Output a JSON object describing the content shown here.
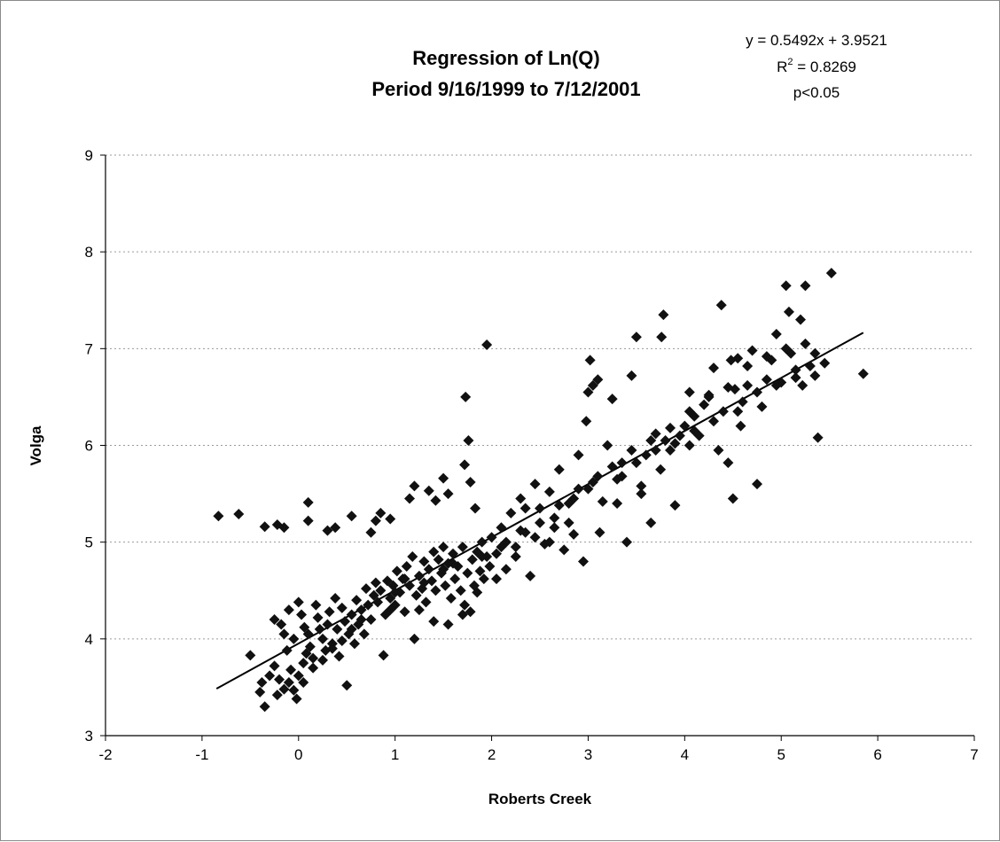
{
  "chart_data": {
    "type": "scatter",
    "title": [
      "Regression of Ln(Q)",
      "Period  9/16/1999 to 7/12/2001"
    ],
    "xlabel": "Roberts Creek",
    "ylabel": "Volga",
    "xlim": [
      -2,
      7
    ],
    "ylim": [
      3,
      9
    ],
    "xticks": [
      "-2",
      "-1",
      "0",
      "1",
      "2",
      "3",
      "4",
      "5",
      "6",
      "7"
    ],
    "yticks": [
      "3",
      "4",
      "5",
      "6",
      "7",
      "8",
      "9"
    ],
    "grid": "horizontal dashed",
    "legend": "none",
    "annotation": {
      "equation": "y = 0.5492x + 3.9521",
      "r2_prefix": "R",
      "r2_sup": "2",
      "r2_value": " = 0.8269",
      "p_value": "p<0.05"
    },
    "trendline": {
      "slope": 0.5492,
      "intercept": 3.9521,
      "x_range": [
        -0.85,
        5.85
      ]
    },
    "marker_color": "#111111",
    "series": [
      {
        "values": [
          [
            -0.83,
            5.27
          ],
          [
            -0.62,
            5.29
          ],
          [
            -0.35,
            5.16
          ],
          [
            -0.22,
            5.18
          ],
          [
            -0.15,
            5.15
          ],
          [
            0.1,
            5.41
          ],
          [
            0.1,
            5.22
          ],
          [
            0.3,
            5.12
          ],
          [
            0.38,
            5.15
          ],
          [
            0.55,
            5.27
          ],
          [
            0.75,
            5.1
          ],
          [
            0.8,
            5.22
          ],
          [
            0.85,
            5.3
          ],
          [
            0.95,
            5.24
          ],
          [
            1.15,
            5.45
          ],
          [
            1.2,
            5.58
          ],
          [
            1.35,
            5.53
          ],
          [
            1.42,
            5.43
          ],
          [
            1.5,
            5.66
          ],
          [
            1.55,
            5.5
          ],
          [
            1.73,
            6.5
          ],
          [
            1.76,
            6.05
          ],
          [
            1.72,
            5.8
          ],
          [
            1.78,
            5.62
          ],
          [
            1.95,
            7.04
          ],
          [
            1.83,
            5.35
          ],
          [
            -0.5,
            3.83
          ],
          [
            -0.4,
            3.45
          ],
          [
            -0.35,
            3.3
          ],
          [
            -0.38,
            3.55
          ],
          [
            -0.3,
            3.62
          ],
          [
            -0.25,
            3.72
          ],
          [
            -0.2,
            3.58
          ],
          [
            -0.22,
            3.42
          ],
          [
            -0.15,
            3.48
          ],
          [
            -0.1,
            3.55
          ],
          [
            -0.08,
            3.68
          ],
          [
            -0.05,
            3.47
          ],
          [
            -0.02,
            3.38
          ],
          [
            0.0,
            3.62
          ],
          [
            0.05,
            3.75
          ],
          [
            0.08,
            3.85
          ],
          [
            -0.25,
            4.2
          ],
          [
            -0.18,
            4.15
          ],
          [
            -0.15,
            4.05
          ],
          [
            -0.1,
            4.3
          ],
          [
            -0.05,
            4.0
          ],
          [
            0.0,
            4.38
          ],
          [
            0.03,
            4.25
          ],
          [
            0.06,
            4.12
          ],
          [
            0.1,
            4.05
          ],
          [
            0.12,
            3.92
          ],
          [
            0.15,
            3.8
          ],
          [
            0.18,
            4.35
          ],
          [
            0.2,
            4.22
          ],
          [
            0.22,
            4.1
          ],
          [
            0.25,
            4.0
          ],
          [
            0.28,
            3.88
          ],
          [
            0.3,
            4.15
          ],
          [
            0.32,
            4.28
          ],
          [
            0.35,
            3.95
          ],
          [
            0.38,
            4.42
          ],
          [
            0.4,
            4.1
          ],
          [
            0.42,
            3.82
          ],
          [
            0.45,
            4.32
          ],
          [
            0.48,
            4.18
          ],
          [
            0.5,
            3.52
          ],
          [
            0.52,
            4.05
          ],
          [
            0.55,
            4.25
          ],
          [
            0.58,
            3.95
          ],
          [
            0.6,
            4.4
          ],
          [
            0.62,
            4.15
          ],
          [
            0.65,
            4.3
          ],
          [
            0.68,
            4.05
          ],
          [
            0.7,
            4.52
          ],
          [
            0.72,
            4.35
          ],
          [
            0.75,
            4.2
          ],
          [
            0.78,
            4.45
          ],
          [
            0.8,
            4.58
          ],
          [
            0.82,
            4.38
          ],
          [
            0.85,
            4.5
          ],
          [
            0.88,
            3.83
          ],
          [
            0.9,
            4.25
          ],
          [
            0.92,
            4.6
          ],
          [
            0.95,
            4.42
          ],
          [
            0.98,
            4.55
          ],
          [
            1.0,
            4.35
          ],
          [
            1.02,
            4.7
          ],
          [
            1.05,
            4.48
          ],
          [
            1.08,
            4.62
          ],
          [
            1.1,
            4.28
          ],
          [
            1.12,
            4.75
          ],
          [
            1.15,
            4.55
          ],
          [
            1.18,
            4.85
          ],
          [
            1.2,
            4.0
          ],
          [
            1.22,
            4.45
          ],
          [
            1.25,
            4.65
          ],
          [
            1.28,
            4.52
          ],
          [
            1.3,
            4.8
          ],
          [
            1.32,
            4.38
          ],
          [
            1.35,
            4.72
          ],
          [
            1.38,
            4.6
          ],
          [
            1.4,
            4.9
          ],
          [
            1.42,
            4.5
          ],
          [
            1.45,
            4.82
          ],
          [
            1.48,
            4.68
          ],
          [
            1.5,
            4.95
          ],
          [
            1.52,
            4.55
          ],
          [
            1.55,
            4.78
          ],
          [
            1.58,
            4.42
          ],
          [
            1.6,
            4.88
          ],
          [
            1.62,
            4.62
          ],
          [
            1.65,
            4.75
          ],
          [
            1.68,
            4.5
          ],
          [
            1.7,
            4.95
          ],
          [
            1.72,
            4.35
          ],
          [
            1.75,
            4.68
          ],
          [
            1.78,
            4.28
          ],
          [
            1.8,
            4.82
          ],
          [
            1.82,
            4.55
          ],
          [
            1.85,
            4.9
          ],
          [
            1.88,
            4.7
          ],
          [
            1.9,
            5.0
          ],
          [
            1.92,
            4.62
          ],
          [
            1.95,
            4.85
          ],
          [
            1.98,
            4.75
          ],
          [
            2.0,
            5.05
          ],
          [
            2.05,
            4.88
          ],
          [
            2.1,
            5.15
          ],
          [
            2.15,
            4.72
          ],
          [
            2.2,
            5.3
          ],
          [
            2.25,
            4.95
          ],
          [
            2.3,
            5.45
          ],
          [
            2.35,
            5.1
          ],
          [
            2.4,
            4.65
          ],
          [
            2.45,
            5.6
          ],
          [
            2.5,
            5.35
          ],
          [
            2.55,
            4.98
          ],
          [
            2.6,
            5.52
          ],
          [
            2.65,
            5.15
          ],
          [
            2.7,
            5.75
          ],
          [
            2.75,
            4.92
          ],
          [
            2.8,
            5.4
          ],
          [
            2.85,
            5.08
          ],
          [
            2.9,
            5.9
          ],
          [
            2.95,
            4.8
          ],
          [
            2.98,
            6.25
          ],
          [
            3.0,
            6.55
          ],
          [
            3.02,
            6.88
          ],
          [
            3.05,
            6.62
          ],
          [
            3.1,
            6.68
          ],
          [
            3.12,
            5.1
          ],
          [
            3.15,
            5.42
          ],
          [
            3.2,
            6.0
          ],
          [
            3.25,
            6.48
          ],
          [
            3.3,
            5.65
          ],
          [
            3.35,
            5.82
          ],
          [
            3.4,
            5.0
          ],
          [
            3.45,
            6.72
          ],
          [
            3.5,
            7.12
          ],
          [
            3.55,
            5.58
          ],
          [
            3.6,
            5.9
          ],
          [
            3.65,
            5.2
          ],
          [
            3.7,
            6.12
          ],
          [
            3.75,
            5.75
          ],
          [
            3.78,
            7.35
          ],
          [
            3.76,
            7.12
          ],
          [
            3.8,
            6.05
          ],
          [
            3.85,
            5.95
          ],
          [
            3.9,
            5.38
          ],
          [
            3.95,
            6.1
          ],
          [
            4.0,
            6.2
          ],
          [
            4.05,
            6.55
          ],
          [
            4.1,
            6.3
          ],
          [
            4.15,
            6.1
          ],
          [
            4.2,
            6.42
          ],
          [
            4.25,
            6.5
          ],
          [
            4.3,
            6.8
          ],
          [
            4.35,
            5.95
          ],
          [
            4.38,
            7.45
          ],
          [
            4.4,
            6.35
          ],
          [
            4.45,
            5.82
          ],
          [
            4.48,
            6.88
          ],
          [
            4.5,
            5.45
          ],
          [
            4.52,
            6.58
          ],
          [
            4.55,
            6.9
          ],
          [
            4.58,
            6.2
          ],
          [
            4.6,
            6.45
          ],
          [
            4.65,
            6.62
          ],
          [
            4.7,
            6.98
          ],
          [
            4.75,
            5.6
          ],
          [
            4.8,
            6.4
          ],
          [
            4.85,
            6.68
          ],
          [
            4.9,
            6.88
          ],
          [
            4.95,
            7.15
          ],
          [
            5.0,
            6.65
          ],
          [
            5.05,
            7.65
          ],
          [
            5.08,
            7.38
          ],
          [
            5.1,
            6.95
          ],
          [
            5.15,
            6.7
          ],
          [
            5.2,
            7.3
          ],
          [
            5.22,
            6.62
          ],
          [
            5.25,
            7.65
          ],
          [
            5.3,
            6.82
          ],
          [
            5.35,
            6.72
          ],
          [
            5.38,
            6.08
          ],
          [
            5.45,
            6.85
          ],
          [
            5.52,
            7.78
          ],
          [
            5.85,
            6.74
          ],
          [
            4.05,
            6.0
          ],
          [
            3.55,
            5.5
          ],
          [
            3.3,
            5.4
          ],
          [
            2.6,
            5.0
          ],
          [
            3.0,
            5.55
          ],
          [
            2.8,
            5.2
          ],
          [
            2.35,
            5.35
          ],
          [
            2.15,
            5.0
          ],
          [
            1.0,
            4.48
          ],
          [
            0.95,
            4.3
          ],
          [
            1.25,
            4.3
          ],
          [
            1.4,
            4.18
          ],
          [
            1.55,
            4.15
          ],
          [
            1.7,
            4.25
          ],
          [
            1.85,
            4.48
          ],
          [
            2.05,
            4.62
          ],
          [
            2.25,
            4.85
          ],
          [
            2.45,
            5.05
          ],
          [
            2.65,
            5.25
          ],
          [
            2.85,
            5.45
          ],
          [
            3.05,
            5.62
          ],
          [
            3.25,
            5.78
          ],
          [
            3.45,
            5.95
          ],
          [
            3.65,
            6.05
          ],
          [
            3.85,
            6.18
          ],
          [
            4.05,
            6.35
          ],
          [
            4.25,
            6.52
          ],
          [
            4.45,
            6.6
          ],
          [
            4.65,
            6.82
          ],
          [
            4.85,
            6.92
          ],
          [
            5.05,
            7.0
          ],
          [
            5.25,
            7.05
          ],
          [
            5.35,
            6.95
          ],
          [
            0.15,
            3.7
          ],
          [
            0.25,
            3.78
          ],
          [
            0.05,
            3.55
          ],
          [
            -0.12,
            3.88
          ],
          [
            0.35,
            3.9
          ],
          [
            0.45,
            3.98
          ],
          [
            0.55,
            4.1
          ],
          [
            0.65,
            4.2
          ],
          [
            1.1,
            4.62
          ],
          [
            1.3,
            4.58
          ],
          [
            1.5,
            4.72
          ],
          [
            1.6,
            4.78
          ],
          [
            1.9,
            4.85
          ],
          [
            2.1,
            4.95
          ],
          [
            2.3,
            5.12
          ],
          [
            2.5,
            5.2
          ],
          [
            2.7,
            5.38
          ],
          [
            2.9,
            5.55
          ],
          [
            3.1,
            5.68
          ],
          [
            3.35,
            5.68
          ],
          [
            3.5,
            5.82
          ],
          [
            3.7,
            5.95
          ],
          [
            3.9,
            6.02
          ],
          [
            4.1,
            6.15
          ],
          [
            4.3,
            6.25
          ],
          [
            4.55,
            6.35
          ],
          [
            4.75,
            6.55
          ],
          [
            4.95,
            6.62
          ],
          [
            5.15,
            6.78
          ]
        ]
      }
    ]
  }
}
